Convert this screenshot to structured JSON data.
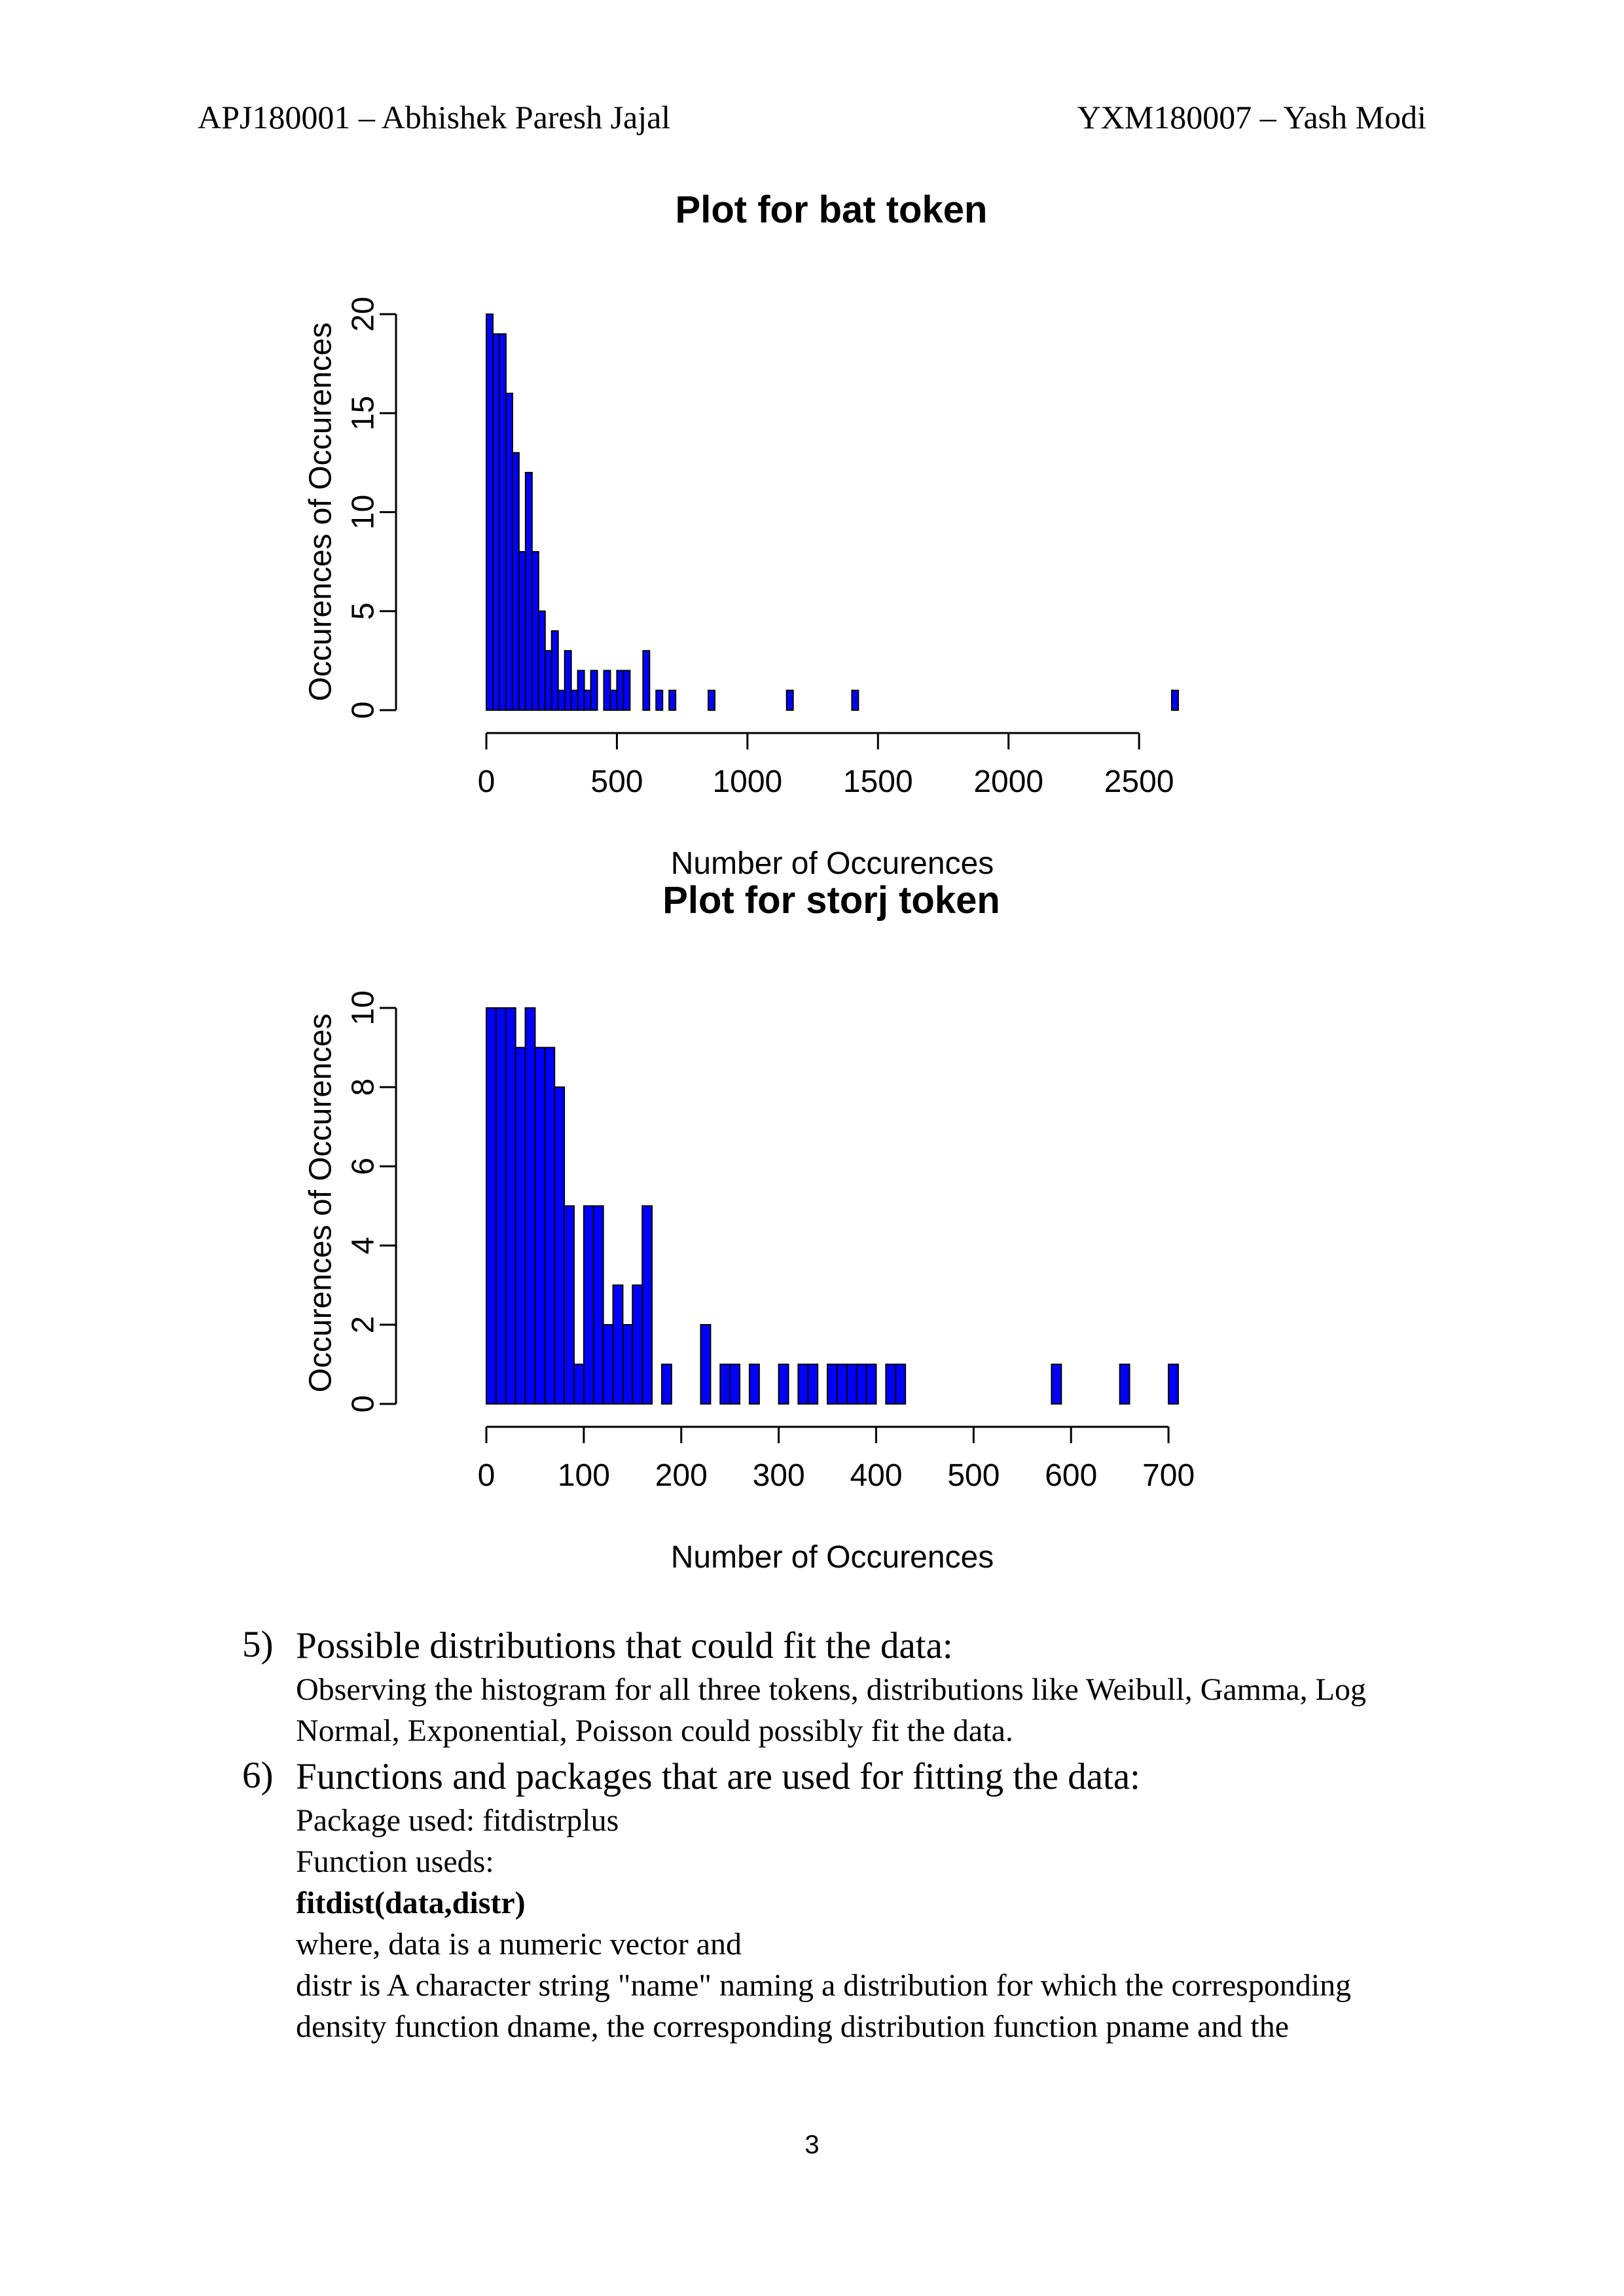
{
  "header": {
    "left": "APJ180001 – Abhishek Paresh Jajal",
    "right": "YXM180007 – Yash Modi"
  },
  "chart_data": [
    {
      "type": "bar",
      "title": "Plot for bat token",
      "xlabel": "Number of Occurences",
      "ylabel": "Occurences of Occurences",
      "xlim": [
        0,
        2650
      ],
      "ylim": [
        0,
        20
      ],
      "xticks": [
        0,
        500,
        1000,
        1500,
        2000,
        2500
      ],
      "yticks": [
        0,
        5,
        10,
        15,
        20
      ],
      "bin_width": 25,
      "bins": [
        {
          "x": 0,
          "value": 20
        },
        {
          "x": 25,
          "value": 19
        },
        {
          "x": 50,
          "value": 19
        },
        {
          "x": 75,
          "value": 16
        },
        {
          "x": 100,
          "value": 13
        },
        {
          "x": 125,
          "value": 8
        },
        {
          "x": 150,
          "value": 12
        },
        {
          "x": 175,
          "value": 8
        },
        {
          "x": 200,
          "value": 5
        },
        {
          "x": 225,
          "value": 3
        },
        {
          "x": 250,
          "value": 4
        },
        {
          "x": 275,
          "value": 1
        },
        {
          "x": 300,
          "value": 3
        },
        {
          "x": 325,
          "value": 1
        },
        {
          "x": 350,
          "value": 2
        },
        {
          "x": 375,
          "value": 1
        },
        {
          "x": 400,
          "value": 2
        },
        {
          "x": 450,
          "value": 2
        },
        {
          "x": 475,
          "value": 1
        },
        {
          "x": 500,
          "value": 2
        },
        {
          "x": 525,
          "value": 2
        },
        {
          "x": 600,
          "value": 3
        },
        {
          "x": 650,
          "value": 1
        },
        {
          "x": 700,
          "value": 1
        },
        {
          "x": 850,
          "value": 1
        },
        {
          "x": 1150,
          "value": 1
        },
        {
          "x": 1400,
          "value": 1
        },
        {
          "x": 2625,
          "value": 1
        }
      ]
    },
    {
      "type": "bar",
      "title": "Plot for storj token",
      "xlabel": "Number of Occurences",
      "ylabel": "Occurences of Occurences",
      "xlim": [
        0,
        710
      ],
      "ylim": [
        0,
        10
      ],
      "xticks": [
        0,
        100,
        200,
        300,
        400,
        500,
        600,
        700
      ],
      "yticks": [
        0,
        2,
        4,
        6,
        8,
        10
      ],
      "bin_width": 10,
      "bins": [
        {
          "x": 0,
          "value": 10
        },
        {
          "x": 10,
          "value": 10
        },
        {
          "x": 20,
          "value": 10
        },
        {
          "x": 30,
          "value": 9
        },
        {
          "x": 40,
          "value": 10
        },
        {
          "x": 50,
          "value": 9
        },
        {
          "x": 60,
          "value": 9
        },
        {
          "x": 70,
          "value": 8
        },
        {
          "x": 80,
          "value": 5
        },
        {
          "x": 90,
          "value": 1
        },
        {
          "x": 100,
          "value": 5
        },
        {
          "x": 110,
          "value": 5
        },
        {
          "x": 120,
          "value": 2
        },
        {
          "x": 130,
          "value": 3
        },
        {
          "x": 140,
          "value": 2
        },
        {
          "x": 150,
          "value": 3
        },
        {
          "x": 160,
          "value": 5
        },
        {
          "x": 170,
          "value": 0
        },
        {
          "x": 180,
          "value": 1
        },
        {
          "x": 220,
          "value": 2
        },
        {
          "x": 240,
          "value": 1
        },
        {
          "x": 250,
          "value": 1
        },
        {
          "x": 270,
          "value": 1
        },
        {
          "x": 300,
          "value": 1
        },
        {
          "x": 320,
          "value": 1
        },
        {
          "x": 330,
          "value": 1
        },
        {
          "x": 350,
          "value": 1
        },
        {
          "x": 360,
          "value": 1
        },
        {
          "x": 370,
          "value": 1
        },
        {
          "x": 380,
          "value": 1
        },
        {
          "x": 390,
          "value": 1
        },
        {
          "x": 410,
          "value": 1
        },
        {
          "x": 420,
          "value": 1
        },
        {
          "x": 580,
          "value": 1
        },
        {
          "x": 650,
          "value": 1
        },
        {
          "x": 700,
          "value": 1
        }
      ]
    }
  ],
  "sections": [
    {
      "number": "5)",
      "title": "Possible distributions that could fit the data:",
      "lines": [
        "Observing the histogram for all three tokens, distributions like Weibull, Gamma, Log",
        "Normal, Exponential, Poisson could possibly fit the data."
      ]
    },
    {
      "number": "6)",
      "title": "Functions and packages that are used for fitting the data:",
      "lines": [
        "Package used: fitdistrplus",
        "Function useds:",
        "fitdist(data,distr)",
        "where, data is a numeric vector and",
        "distr is A character string \"name\" naming a distribution for which the corresponding",
        "density function dname, the corresponding distribution function pname and the"
      ]
    }
  ],
  "colors": {
    "bar_fill": "#0000ff",
    "bar_stroke": "#000000"
  },
  "page_number": "3"
}
